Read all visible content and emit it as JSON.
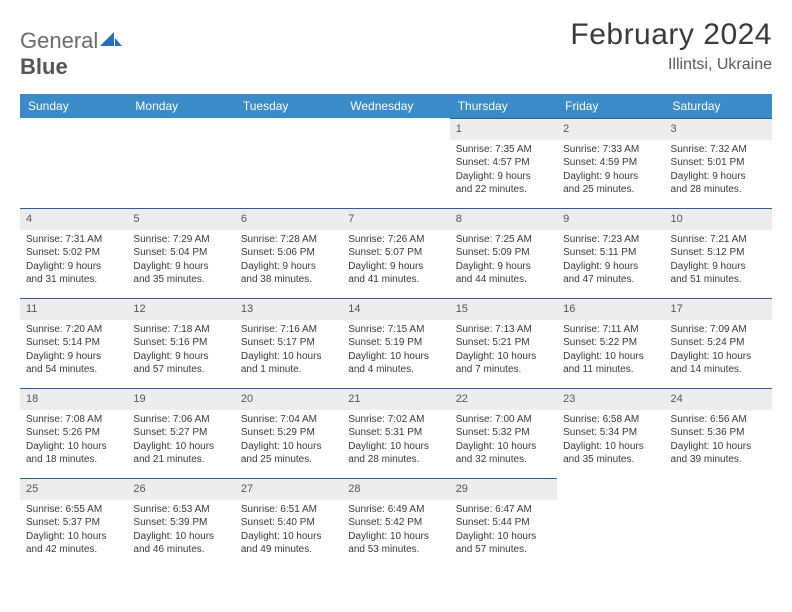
{
  "logo": {
    "part1": "General",
    "part2": "Blue"
  },
  "title": "February 2024",
  "location": "Illintsi, Ukraine",
  "theme": {
    "header_bg": "#3b8bc8",
    "header_fg": "#ffffff",
    "daynum_bg": "#ededed",
    "daynum_border": "#2f5f8a",
    "text_color": "#3a3a3a",
    "logo_blue": "#2a6fb5"
  },
  "weekdays": [
    "Sunday",
    "Monday",
    "Tuesday",
    "Wednesday",
    "Thursday",
    "Friday",
    "Saturday"
  ],
  "weeks": [
    [
      null,
      null,
      null,
      null,
      {
        "n": "1",
        "sr": "Sunrise: 7:35 AM",
        "ss": "Sunset: 4:57 PM",
        "d1": "Daylight: 9 hours",
        "d2": "and 22 minutes."
      },
      {
        "n": "2",
        "sr": "Sunrise: 7:33 AM",
        "ss": "Sunset: 4:59 PM",
        "d1": "Daylight: 9 hours",
        "d2": "and 25 minutes."
      },
      {
        "n": "3",
        "sr": "Sunrise: 7:32 AM",
        "ss": "Sunset: 5:01 PM",
        "d1": "Daylight: 9 hours",
        "d2": "and 28 minutes."
      }
    ],
    [
      {
        "n": "4",
        "sr": "Sunrise: 7:31 AM",
        "ss": "Sunset: 5:02 PM",
        "d1": "Daylight: 9 hours",
        "d2": "and 31 minutes."
      },
      {
        "n": "5",
        "sr": "Sunrise: 7:29 AM",
        "ss": "Sunset: 5:04 PM",
        "d1": "Daylight: 9 hours",
        "d2": "and 35 minutes."
      },
      {
        "n": "6",
        "sr": "Sunrise: 7:28 AM",
        "ss": "Sunset: 5:06 PM",
        "d1": "Daylight: 9 hours",
        "d2": "and 38 minutes."
      },
      {
        "n": "7",
        "sr": "Sunrise: 7:26 AM",
        "ss": "Sunset: 5:07 PM",
        "d1": "Daylight: 9 hours",
        "d2": "and 41 minutes."
      },
      {
        "n": "8",
        "sr": "Sunrise: 7:25 AM",
        "ss": "Sunset: 5:09 PM",
        "d1": "Daylight: 9 hours",
        "d2": "and 44 minutes."
      },
      {
        "n": "9",
        "sr": "Sunrise: 7:23 AM",
        "ss": "Sunset: 5:11 PM",
        "d1": "Daylight: 9 hours",
        "d2": "and 47 minutes."
      },
      {
        "n": "10",
        "sr": "Sunrise: 7:21 AM",
        "ss": "Sunset: 5:12 PM",
        "d1": "Daylight: 9 hours",
        "d2": "and 51 minutes."
      }
    ],
    [
      {
        "n": "11",
        "sr": "Sunrise: 7:20 AM",
        "ss": "Sunset: 5:14 PM",
        "d1": "Daylight: 9 hours",
        "d2": "and 54 minutes."
      },
      {
        "n": "12",
        "sr": "Sunrise: 7:18 AM",
        "ss": "Sunset: 5:16 PM",
        "d1": "Daylight: 9 hours",
        "d2": "and 57 minutes."
      },
      {
        "n": "13",
        "sr": "Sunrise: 7:16 AM",
        "ss": "Sunset: 5:17 PM",
        "d1": "Daylight: 10 hours",
        "d2": "and 1 minute."
      },
      {
        "n": "14",
        "sr": "Sunrise: 7:15 AM",
        "ss": "Sunset: 5:19 PM",
        "d1": "Daylight: 10 hours",
        "d2": "and 4 minutes."
      },
      {
        "n": "15",
        "sr": "Sunrise: 7:13 AM",
        "ss": "Sunset: 5:21 PM",
        "d1": "Daylight: 10 hours",
        "d2": "and 7 minutes."
      },
      {
        "n": "16",
        "sr": "Sunrise: 7:11 AM",
        "ss": "Sunset: 5:22 PM",
        "d1": "Daylight: 10 hours",
        "d2": "and 11 minutes."
      },
      {
        "n": "17",
        "sr": "Sunrise: 7:09 AM",
        "ss": "Sunset: 5:24 PM",
        "d1": "Daylight: 10 hours",
        "d2": "and 14 minutes."
      }
    ],
    [
      {
        "n": "18",
        "sr": "Sunrise: 7:08 AM",
        "ss": "Sunset: 5:26 PM",
        "d1": "Daylight: 10 hours",
        "d2": "and 18 minutes."
      },
      {
        "n": "19",
        "sr": "Sunrise: 7:06 AM",
        "ss": "Sunset: 5:27 PM",
        "d1": "Daylight: 10 hours",
        "d2": "and 21 minutes."
      },
      {
        "n": "20",
        "sr": "Sunrise: 7:04 AM",
        "ss": "Sunset: 5:29 PM",
        "d1": "Daylight: 10 hours",
        "d2": "and 25 minutes."
      },
      {
        "n": "21",
        "sr": "Sunrise: 7:02 AM",
        "ss": "Sunset: 5:31 PM",
        "d1": "Daylight: 10 hours",
        "d2": "and 28 minutes."
      },
      {
        "n": "22",
        "sr": "Sunrise: 7:00 AM",
        "ss": "Sunset: 5:32 PM",
        "d1": "Daylight: 10 hours",
        "d2": "and 32 minutes."
      },
      {
        "n": "23",
        "sr": "Sunrise: 6:58 AM",
        "ss": "Sunset: 5:34 PM",
        "d1": "Daylight: 10 hours",
        "d2": "and 35 minutes."
      },
      {
        "n": "24",
        "sr": "Sunrise: 6:56 AM",
        "ss": "Sunset: 5:36 PM",
        "d1": "Daylight: 10 hours",
        "d2": "and 39 minutes."
      }
    ],
    [
      {
        "n": "25",
        "sr": "Sunrise: 6:55 AM",
        "ss": "Sunset: 5:37 PM",
        "d1": "Daylight: 10 hours",
        "d2": "and 42 minutes."
      },
      {
        "n": "26",
        "sr": "Sunrise: 6:53 AM",
        "ss": "Sunset: 5:39 PM",
        "d1": "Daylight: 10 hours",
        "d2": "and 46 minutes."
      },
      {
        "n": "27",
        "sr": "Sunrise: 6:51 AM",
        "ss": "Sunset: 5:40 PM",
        "d1": "Daylight: 10 hours",
        "d2": "and 49 minutes."
      },
      {
        "n": "28",
        "sr": "Sunrise: 6:49 AM",
        "ss": "Sunset: 5:42 PM",
        "d1": "Daylight: 10 hours",
        "d2": "and 53 minutes."
      },
      {
        "n": "29",
        "sr": "Sunrise: 6:47 AM",
        "ss": "Sunset: 5:44 PM",
        "d1": "Daylight: 10 hours",
        "d2": "and 57 minutes."
      },
      null,
      null
    ]
  ]
}
